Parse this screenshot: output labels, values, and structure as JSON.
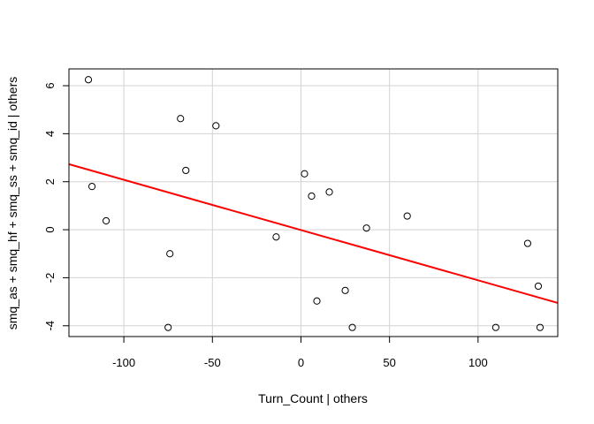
{
  "chart_data": {
    "type": "scatter",
    "title": "",
    "xlabel": "Turn_Count | others",
    "ylabel": "smq_as + smq_hf + smq_ss + smq_id  | others",
    "xlim": [
      -131,
      145
    ],
    "ylim": [
      -4.45,
      6.7
    ],
    "x_ticks": [
      -100,
      -50,
      0,
      50,
      100
    ],
    "y_ticks": [
      -4,
      -2,
      0,
      2,
      4,
      6
    ],
    "x_tick_labels": [
      "-100",
      "-50",
      "0",
      "50",
      "100"
    ],
    "y_tick_labels": [
      "-4",
      "-2",
      "0",
      "2",
      "4",
      "6"
    ],
    "grid": true,
    "points": [
      {
        "x": -120,
        "y": 6.25
      },
      {
        "x": -118,
        "y": 1.8
      },
      {
        "x": -110,
        "y": 0.37
      },
      {
        "x": -74,
        "y": -1.0
      },
      {
        "x": -75,
        "y": -4.07
      },
      {
        "x": -68,
        "y": 4.63
      },
      {
        "x": -65,
        "y": 2.47
      },
      {
        "x": -48,
        "y": 4.33
      },
      {
        "x": -14,
        "y": -0.3
      },
      {
        "x": 2,
        "y": 2.33
      },
      {
        "x": 6,
        "y": 1.4
      },
      {
        "x": 9,
        "y": -2.97
      },
      {
        "x": 16,
        "y": 1.57
      },
      {
        "x": 25,
        "y": -2.53
      },
      {
        "x": 29,
        "y": -4.07
      },
      {
        "x": 37,
        "y": 0.07
      },
      {
        "x": 60,
        "y": 0.57
      },
      {
        "x": 110,
        "y": -4.07
      },
      {
        "x": 128,
        "y": -0.57
      },
      {
        "x": 134,
        "y": -2.35
      },
      {
        "x": 135,
        "y": -4.07
      }
    ],
    "fit_line": {
      "x": [
        -131,
        145
      ],
      "y": [
        2.73,
        -3.05
      ]
    },
    "colors": {
      "points": "#000000",
      "fit_line": "#ff0000",
      "grid": "#d3d3d3",
      "axes": "#000000"
    }
  }
}
